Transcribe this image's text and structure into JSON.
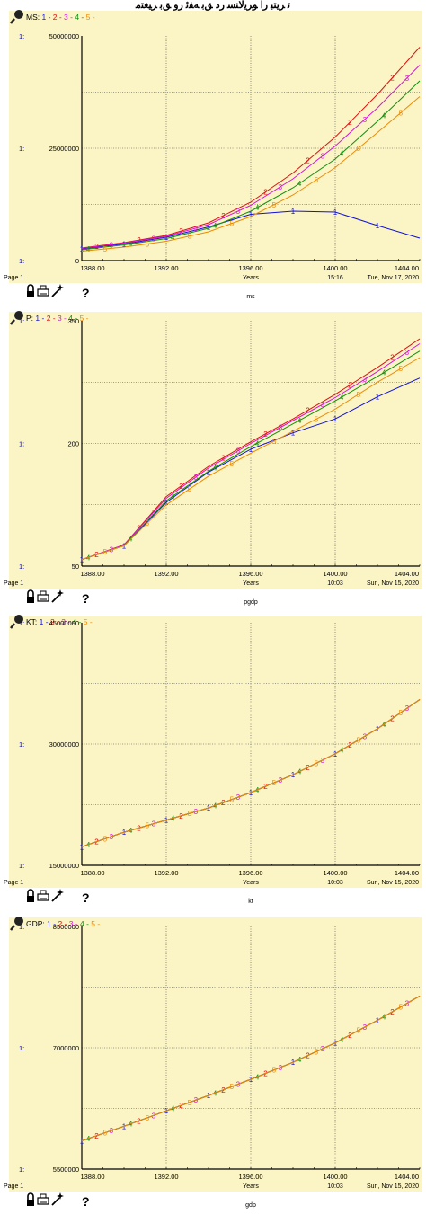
{
  "top_heading": "ﺗ ﺮﻳﺘﺒ ﺭﺍ ﻮﺮﻳﻟﺎﻨﺳ ﺭﺩ ﻖﺑ ﻪﻔﺋ ﺭﻭ ﻖﺑ ﺮﻴﻐﺘﻣ",
  "colors": {
    "panel_bg": "#fbf4c4",
    "grid": "#444444",
    "axis_label": "#0000cc",
    "series": [
      "#1010dd",
      "#dd1010",
      "#dd10dd",
      "#109010",
      "#ee8a00"
    ]
  },
  "panels": [
    {
      "var": "MS:",
      "legend_items": [
        "1",
        "2",
        "3",
        "4",
        "5"
      ],
      "scale_prefix": "1:",
      "ymax_label": "50000000",
      "ymid_label": "25000000",
      "ymin_label": "0",
      "page_label": "Page 1",
      "xlabel": "Years",
      "time": "15:16",
      "date": "Tue, Nov 17, 2020",
      "caption": "ms"
    },
    {
      "var": "P:",
      "legend_items": [
        "1",
        "2",
        "3",
        "4",
        "5"
      ],
      "scale_prefix": "1:",
      "ymax_label": "350",
      "ymid_label": "200",
      "ymin_label": "50",
      "page_label": "Page 1",
      "xlabel": "Years",
      "time": "10:03",
      "date": "Sun, Nov 15, 2020",
      "caption": "pgdp"
    },
    {
      "var": "KT:",
      "legend_items": [
        "1",
        "2",
        "3",
        "4",
        "5"
      ],
      "scale_prefix": "1:",
      "ymax_label": "45000000",
      "ymid_label": "30000000",
      "ymin_label": "15000000",
      "page_label": "Page 1",
      "xlabel": "Years",
      "time": "10:03",
      "date": "Sun, Nov 15, 2020",
      "caption": "kt"
    },
    {
      "var": "GDP:",
      "legend_items": [
        "1",
        "2",
        "3",
        "4",
        "5"
      ],
      "scale_prefix": "1:",
      "ymax_label": "8500000",
      "ymid_label": "7000000",
      "ymin_label": "5500000",
      "page_label": "Page 1",
      "xlabel": "Years",
      "time": "10:03",
      "date": "Sun, Nov 15, 2020",
      "caption": "gdp"
    }
  ],
  "toolbar": {
    "icons": [
      "lock-icon",
      "print-icon",
      "magic-wand-icon",
      "help-icon"
    ],
    "help_glyph": "?"
  },
  "chart_data": [
    {
      "type": "line",
      "title": "",
      "xlabel": "Years",
      "ylabel": "",
      "xlim": [
        1388,
        1404
      ],
      "ylim": [
        0,
        50000000
      ],
      "x_ticks": [
        "1388.00",
        "1392.00",
        "1396.00",
        "1400.00",
        "1404.00"
      ],
      "y_ticks": [
        "0",
        "25000000",
        "50000000"
      ],
      "grid": true,
      "legend": "top-left",
      "x": [
        1388,
        1390,
        1392,
        1394,
        1396,
        1398,
        1400,
        1402,
        1404
      ],
      "series": [
        {
          "name": "1",
          "values": [
            2600000,
            3700000,
            5200000,
            7500000,
            10300000,
            11000000,
            10800000,
            7800000,
            5000000
          ]
        },
        {
          "name": "2",
          "values": [
            2800000,
            4000000,
            5600000,
            8400000,
            13000000,
            19500000,
            27500000,
            37000000,
            47500000
          ]
        },
        {
          "name": "3",
          "values": [
            2700000,
            3900000,
            5400000,
            8000000,
            12300000,
            18200000,
            25500000,
            34000000,
            43500000
          ]
        },
        {
          "name": "4",
          "values": [
            2400000,
            3500000,
            4900000,
            7200000,
            11000000,
            16200000,
            22600000,
            31000000,
            40000000
          ]
        },
        {
          "name": "5",
          "values": [
            2100000,
            3000000,
            4300000,
            6400000,
            9800000,
            14600000,
            20700000,
            28500000,
            36500000
          ]
        }
      ]
    },
    {
      "type": "line",
      "title": "",
      "xlabel": "Years",
      "ylabel": "",
      "xlim": [
        1388,
        1404
      ],
      "ylim": [
        50,
        350
      ],
      "x_ticks": [
        "1388.00",
        "1392.00",
        "1396.00",
        "1400.00",
        "1404.00"
      ],
      "y_ticks": [
        "50",
        "200",
        "350"
      ],
      "grid": true,
      "legend": "top-left",
      "x": [
        1388,
        1390,
        1392,
        1394,
        1396,
        1398,
        1400,
        1402,
        1404
      ],
      "series": [
        {
          "name": "1",
          "values": [
            58,
            75,
            128,
            165,
            193,
            213,
            230,
            257,
            280
          ]
        },
        {
          "name": "2",
          "values": [
            58,
            76,
            135,
            172,
            202,
            230,
            260,
            293,
            328
          ]
        },
        {
          "name": "3",
          "values": [
            58,
            76,
            133,
            170,
            200,
            228,
            256,
            288,
            322
          ]
        },
        {
          "name": "4",
          "values": [
            58,
            75,
            130,
            166,
            196,
            224,
            252,
            282,
            313
          ]
        },
        {
          "name": "5",
          "values": [
            58,
            75,
            125,
            160,
            188,
            215,
            242,
            275,
            305
          ]
        }
      ]
    },
    {
      "type": "line",
      "title": "",
      "xlabel": "Years",
      "ylabel": "",
      "xlim": [
        1388,
        1404
      ],
      "ylim": [
        15000000,
        45000000
      ],
      "x_ticks": [
        "1388.00",
        "1392.00",
        "1396.00",
        "1400.00",
        "1404.00"
      ],
      "y_ticks": [
        "15000000",
        "30000000",
        "45000000"
      ],
      "grid": true,
      "legend": "top-left",
      "x": [
        1388,
        1390,
        1392,
        1394,
        1396,
        1398,
        1400,
        1402,
        1404
      ],
      "series": [
        {
          "name": "1",
          "values": [
            17300000,
            19100000,
            20600000,
            22100000,
            24000000,
            26200000,
            28800000,
            31900000,
            35500000
          ]
        },
        {
          "name": "2",
          "values": [
            17300000,
            19100000,
            20600000,
            22100000,
            24000000,
            26200000,
            28800000,
            31900000,
            35500000
          ]
        },
        {
          "name": "3",
          "values": [
            17300000,
            19100000,
            20600000,
            22100000,
            24000000,
            26200000,
            28800000,
            31900000,
            35500000
          ]
        },
        {
          "name": "4",
          "values": [
            17300000,
            19100000,
            20600000,
            22100000,
            24000000,
            26200000,
            28800000,
            31900000,
            35500000
          ]
        },
        {
          "name": "5",
          "values": [
            17300000,
            19100000,
            20600000,
            22100000,
            24000000,
            26200000,
            28800000,
            31900000,
            35500000
          ]
        }
      ]
    },
    {
      "type": "line",
      "title": "",
      "xlabel": "Years",
      "ylabel": "",
      "xlim": [
        1388,
        1404
      ],
      "ylim": [
        5500000,
        8500000
      ],
      "x_ticks": [
        "1388.00",
        "1392.00",
        "1396.00",
        "1400.00",
        "1404.00"
      ],
      "y_ticks": [
        "5500000",
        "7000000",
        "8500000"
      ],
      "grid": true,
      "legend": "top-left",
      "x": [
        1388,
        1390,
        1392,
        1394,
        1396,
        1398,
        1400,
        1402,
        1404
      ],
      "series": [
        {
          "name": "1",
          "values": [
            5850000,
            6030000,
            6220000,
            6410000,
            6610000,
            6820000,
            7060000,
            7340000,
            7640000
          ]
        },
        {
          "name": "2",
          "values": [
            5850000,
            6030000,
            6220000,
            6410000,
            6610000,
            6820000,
            7060000,
            7340000,
            7640000
          ]
        },
        {
          "name": "3",
          "values": [
            5850000,
            6030000,
            6220000,
            6410000,
            6610000,
            6820000,
            7060000,
            7340000,
            7640000
          ]
        },
        {
          "name": "4",
          "values": [
            5850000,
            6030000,
            6220000,
            6410000,
            6610000,
            6820000,
            7060000,
            7340000,
            7640000
          ]
        },
        {
          "name": "5",
          "values": [
            5850000,
            6030000,
            6220000,
            6410000,
            6610000,
            6820000,
            7060000,
            7340000,
            7640000
          ]
        }
      ]
    }
  ]
}
